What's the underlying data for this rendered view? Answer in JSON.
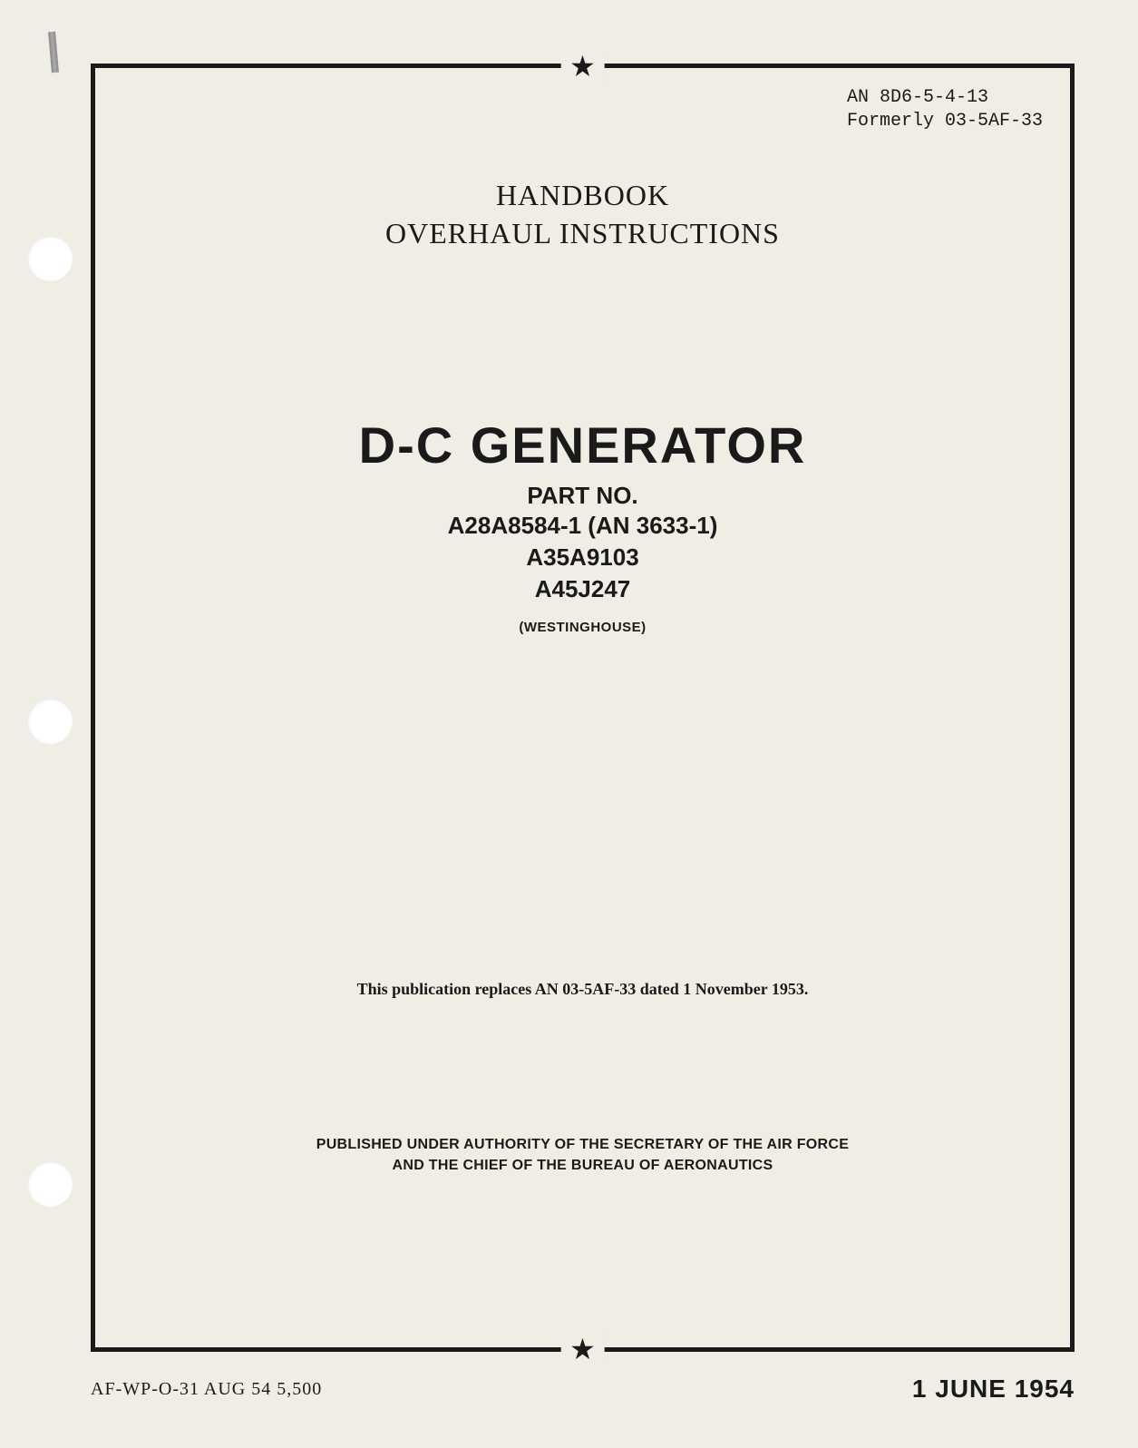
{
  "document_number": {
    "current": "AN 8D6-5-4-13",
    "former": "Formerly 03-5AF-33"
  },
  "header": {
    "line1": "HANDBOOK",
    "line2": "OVERHAUL INSTRUCTIONS"
  },
  "title": {
    "main": "D-C GENERATOR",
    "part_no_label": "PART NO.",
    "parts": [
      "A28A8584-1 (AN 3633-1)",
      "A35A9103",
      "A45J247"
    ],
    "manufacturer": "(WESTINGHOUSE)"
  },
  "replacement_note": "This publication replaces AN 03-5AF-33 dated 1 November 1953.",
  "authority": {
    "line1": "PUBLISHED UNDER AUTHORITY OF THE SECRETARY OF THE AIR FORCE",
    "line2": "AND THE CHIEF OF THE BUREAU OF AERONAUTICS"
  },
  "footer": {
    "print_code": "AF-WP-O-31 AUG 54 5,500",
    "date": "1 JUNE 1954"
  },
  "stars": {
    "top": "★",
    "bottom": "★"
  },
  "styling": {
    "page_bg": "#f0ede4",
    "text_color": "#1a1a1a",
    "border_color": "#1a1a1a",
    "border_width": 5,
    "main_title_fontsize": 56,
    "header_fontsize": 32,
    "part_fontsize": 26,
    "manufacturer_fontsize": 15,
    "note_fontsize": 18,
    "authority_fontsize": 16,
    "date_fontsize": 28,
    "doc_number_fontsize": 20
  }
}
